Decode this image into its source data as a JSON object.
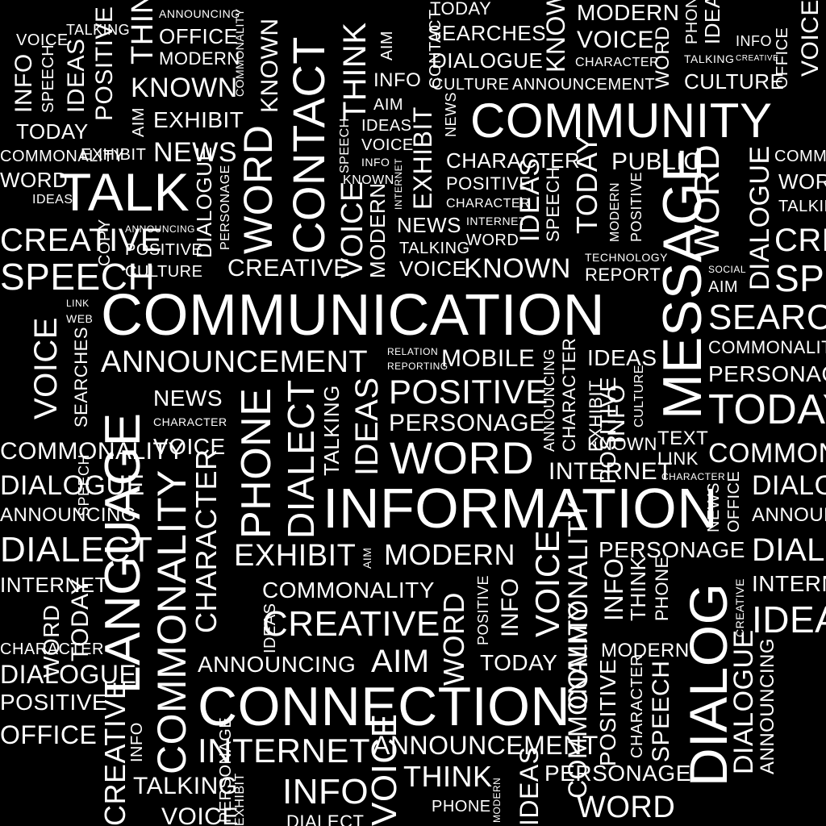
{
  "words": [
    "COMMUNICATION",
    "INFORMATION",
    "CONNECTION",
    "COMMUNITY",
    "LANGUAGE",
    "MESSAGE",
    "DIALOG",
    "TALK",
    "CONTACT",
    "WORD",
    "PHONE",
    "DIALECT",
    "COMMONALITY",
    "ANNOUNCEMENT",
    "CREATIVE",
    "POSITIVE",
    "PERSONAGE",
    "INTERNET",
    "MODERN",
    "EXHIBIT",
    "TODAY",
    "SEARCHES",
    "KNOWN",
    "NEWS",
    "SPEECH",
    "DIALOGUE",
    "CHARACTER",
    "ANNOUNCING",
    "AIM",
    "THINK",
    "INFO",
    "MOBILE",
    "IDEAS",
    "VOICE",
    "TALKING",
    "CULTURE",
    "OFFICE",
    "PUBLIC",
    "REPORT",
    "TECHNOLOGY",
    "TEXT",
    "LINK",
    "SOCIAL",
    "RELATION",
    "REPORTING",
    "WEB",
    "COPY"
  ],
  "style": {
    "background": "#000000",
    "text": "#FFFFFF"
  }
}
